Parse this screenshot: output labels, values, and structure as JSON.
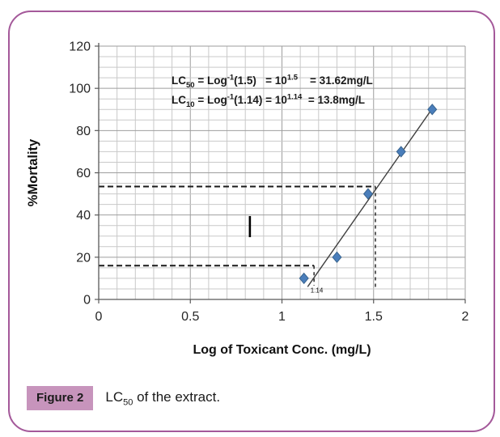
{
  "figure": {
    "caption_label": "Figure 2",
    "caption_segments": [
      {
        "t": "LC"
      },
      {
        "t": "50",
        "s": "sub"
      },
      {
        "t": " of the extract."
      }
    ]
  },
  "colors": {
    "marker": "#4a7ebb",
    "marker_edge": "#39648f",
    "trend": "#404040",
    "grid_minor": "#c9c9c9",
    "grid_major": "#9e9e9e",
    "axis": "#595959",
    "dashed": "#1a1a1a",
    "border": "#a4599a",
    "caption_bg": "#c794bc",
    "text": "#262626",
    "title_text": "#111111"
  },
  "chart_data": {
    "type": "scatter",
    "title": "",
    "xlabel": "Log of Toxicant Conc. (mg/L)",
    "ylabel": "%Mortality",
    "xlim": [
      0,
      2
    ],
    "ylim": [
      0,
      120
    ],
    "x_major_ticks": [
      0,
      0.5,
      1,
      1.5,
      2
    ],
    "x_tick_labels": [
      "0",
      "0.5",
      "1",
      "1.5",
      "2"
    ],
    "y_major_ticks": [
      0,
      20,
      40,
      60,
      80,
      100,
      120
    ],
    "x_minor_step": 0.1,
    "y_minor_step": 5,
    "grid": "both",
    "legend": "none",
    "points": [
      {
        "x": 1.12,
        "y": 10
      },
      {
        "x": 1.3,
        "y": 20
      },
      {
        "x": 1.47,
        "y": 50
      },
      {
        "x": 1.65,
        "y": 70
      },
      {
        "x": 1.82,
        "y": 90
      }
    ],
    "trendline": {
      "x1": 1.14,
      "y1": 6,
      "x2": 1.825,
      "y2": 91
    },
    "dashed_guides": [
      {
        "name": "lc50-horizontal-guide",
        "x1": 0,
        "y1": 53.5,
        "x2": 1.51,
        "y2": 53.5,
        "width": 2,
        "dash": "7 4"
      },
      {
        "name": "lc50-vertical-guide",
        "x1": 1.51,
        "y1": 53.5,
        "x2": 1.51,
        "y2": 5.5,
        "width": 1.4,
        "dash": "4 4"
      },
      {
        "name": "lc10-horizontal-guide",
        "x1": 0,
        "y1": 16,
        "x2": 1.175,
        "y2": 16,
        "width": 2,
        "dash": "7 4"
      },
      {
        "name": "lc10-vertical-guide",
        "x1": 1.175,
        "y1": 16,
        "x2": 1.175,
        "y2": 6.5,
        "width": 1.4,
        "dash": "4 4"
      }
    ],
    "guide_label": {
      "text": "1.14",
      "x": 1.19,
      "y": 3.2
    },
    "stray_mark": {
      "x": 0.825,
      "y1": 29.5,
      "y2": 39.5
    },
    "annotation": {
      "lines": [
        {
          "segments": [
            {
              "t": "LC"
            },
            {
              "t": "50",
              "s": "sub"
            },
            {
              "t": " = Log"
            },
            {
              "t": "-1",
              "s": "sup"
            },
            {
              "t": "(1.5)   = 10"
            },
            {
              "t": "1.5",
              "s": "sup"
            },
            {
              "t": "    = 31.62mg/L"
            }
          ]
        },
        {
          "segments": [
            {
              "t": "LC"
            },
            {
              "t": "10",
              "s": "sub"
            },
            {
              "t": " = Log"
            },
            {
              "t": "-1",
              "s": "sup"
            },
            {
              "t": "(1.14) = 10"
            },
            {
              "t": "1.14",
              "s": "sup"
            },
            {
              "t": "  = 13.8mg/L"
            }
          ]
        }
      ]
    }
  }
}
